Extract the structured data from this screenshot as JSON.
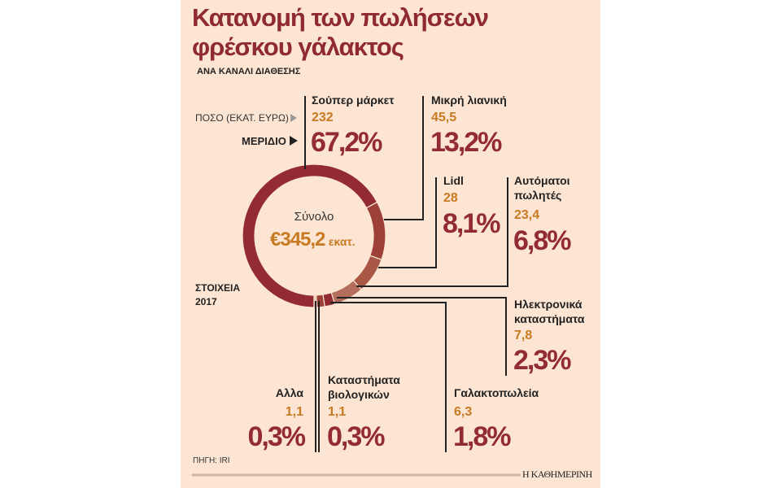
{
  "title_line1": "Κατανομή των πωλήσεων",
  "title_line2": "φρέσκου γάλακτος",
  "subtitle": "ΑΝΑ ΚΑΝΑΛΙ ΔΙΑΘΕΣΗΣ",
  "legend": {
    "amount": "ΠΟΣΟ (ΕΚΑΤ. ΕΥΡΩ)",
    "share": "ΜΕΡΙΔΙΟ"
  },
  "center": {
    "label": "Σύνολο",
    "value": "€345,2",
    "unit": "εκατ."
  },
  "data_note": "ΣΤΟΙΧΕΙΑ 2017",
  "source": "ΠΗΓΗ: IRI",
  "brand": "Η ΚΑΘΗΜΕΡΙΝΗ",
  "colors": {
    "title": "#8e2a30",
    "amount": "#c77a22",
    "background": "#fde5d3"
  },
  "chart_data": {
    "type": "pie",
    "variant": "donut",
    "total": 345.2,
    "categories": [
      {
        "name": "Σούπερ μάρκετ",
        "amount": "232",
        "share": "67,2%",
        "value": 67.2,
        "color": "#922b32"
      },
      {
        "name": "Μικρή λιανική",
        "amount": "45,5",
        "share": "13,2%",
        "value": 13.2,
        "color": "#9d4038"
      },
      {
        "name": "Lidl",
        "amount": "28",
        "share": "8,1%",
        "value": 8.1,
        "color": "#a85745"
      },
      {
        "name": "Αυτόματοι πωλητές",
        "amount": "23,4",
        "share": "6,8%",
        "value": 6.8,
        "color": "#b36d5a"
      },
      {
        "name": "Ηλεκτρονικά καταστήματα",
        "amount": "7,8",
        "share": "2,3%",
        "value": 2.3,
        "color": "#922b32"
      },
      {
        "name": "Γαλακτοπωλεία",
        "amount": "6,3",
        "share": "1,8%",
        "value": 1.8,
        "color": "#9d4038"
      },
      {
        "name": "Καταστήματα βιολογικών",
        "amount": "1,1",
        "share": "0,3%",
        "value": 0.3,
        "color": "#a85745"
      },
      {
        "name": "Αλλα",
        "amount": "1,1",
        "share": "0,3%",
        "value": 0.3,
        "color": "#b36d5a"
      }
    ]
  }
}
